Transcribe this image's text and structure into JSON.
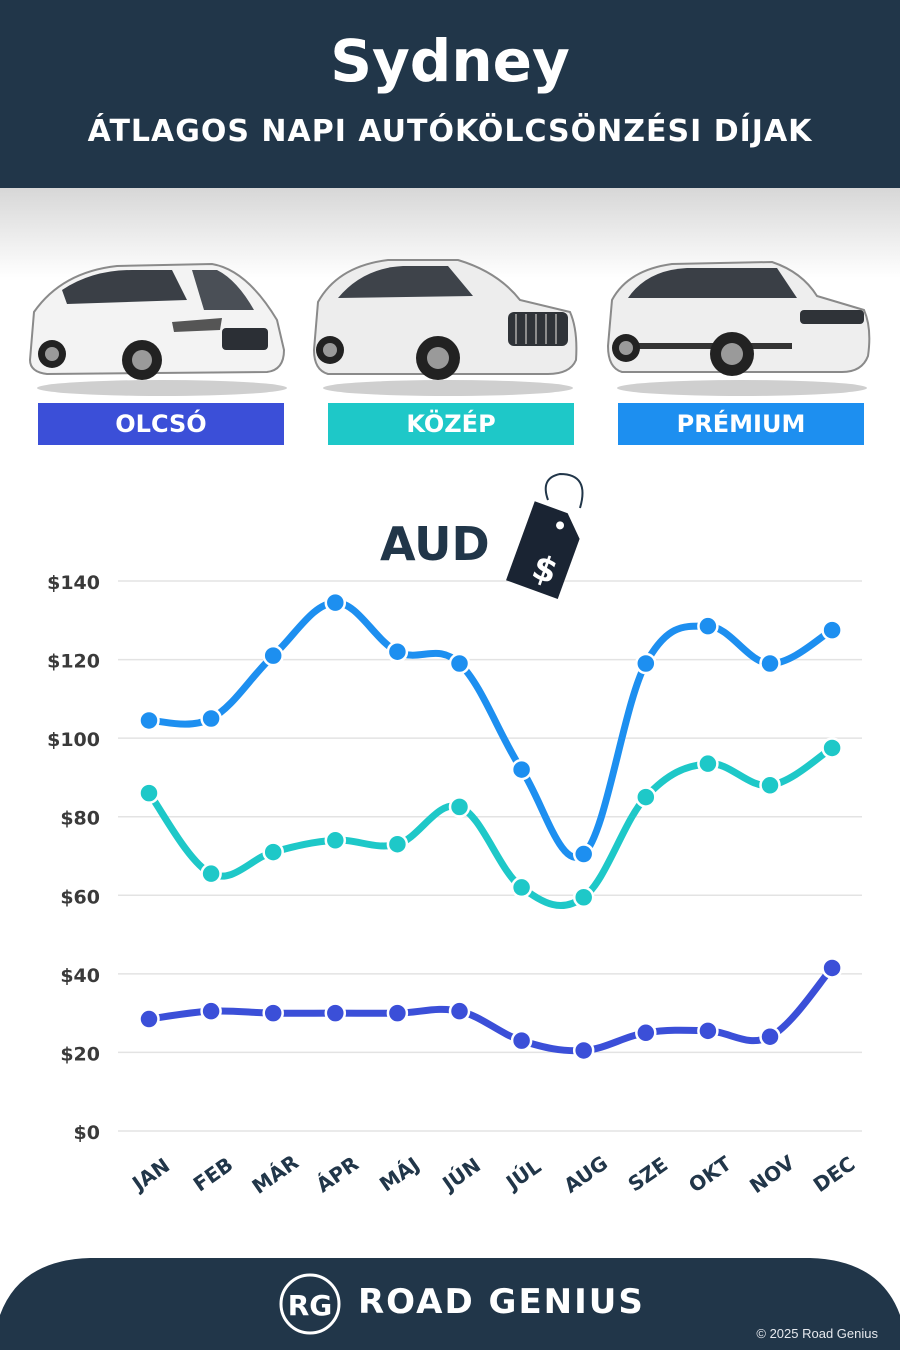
{
  "header": {
    "title": "Sydney",
    "subtitle": "ÁTLAGOS NAPI AUTÓKÖLCSÖNZÉSI DÍJAK"
  },
  "categories": [
    {
      "label": "OLCSÓ",
      "color": "#3b4fd8"
    },
    {
      "label": "KÖZÉP",
      "color": "#1ec8c8"
    },
    {
      "label": "PRÉMIUM",
      "color": "#1d8ff0"
    }
  ],
  "currency": {
    "label": "AUD",
    "tag_symbol": "$",
    "icon": "price-tag-icon"
  },
  "chart_data": {
    "type": "line",
    "categories": [
      "JAN",
      "FEB",
      "MÁR",
      "ÁPR",
      "MÁJ",
      "JÚN",
      "JÚL",
      "AUG",
      "SZE",
      "OKT",
      "NOV",
      "DEC"
    ],
    "series": [
      {
        "name": "PRÉMIUM",
        "color": "#1d8ff0",
        "values": [
          104.5,
          105,
          121,
          134.5,
          122,
          119,
          92,
          70.5,
          119,
          128.5,
          119,
          127.5
        ]
      },
      {
        "name": "KÖZÉP",
        "color": "#1ec8c8",
        "values": [
          86,
          65.5,
          71,
          74,
          73,
          82.5,
          62,
          59.5,
          85,
          93.5,
          88,
          97.5
        ]
      },
      {
        "name": "OLCSÓ",
        "color": "#3b4fd8",
        "values": [
          28.5,
          30.5,
          30,
          30,
          30,
          30.5,
          23,
          20.5,
          25,
          25.5,
          24,
          41.5
        ]
      }
    ],
    "ylim": [
      0,
      140
    ],
    "yticks": [
      0,
      20,
      40,
      60,
      80,
      100,
      120,
      140
    ],
    "ytick_labels": [
      "$0",
      "$20",
      "$40",
      "$60",
      "$80",
      "$100",
      "$120",
      "$140"
    ],
    "grid": true
  },
  "footer": {
    "logo_text": "RG",
    "brand": "ROAD GENIUS",
    "copyright": "© 2025 Road Genius"
  }
}
